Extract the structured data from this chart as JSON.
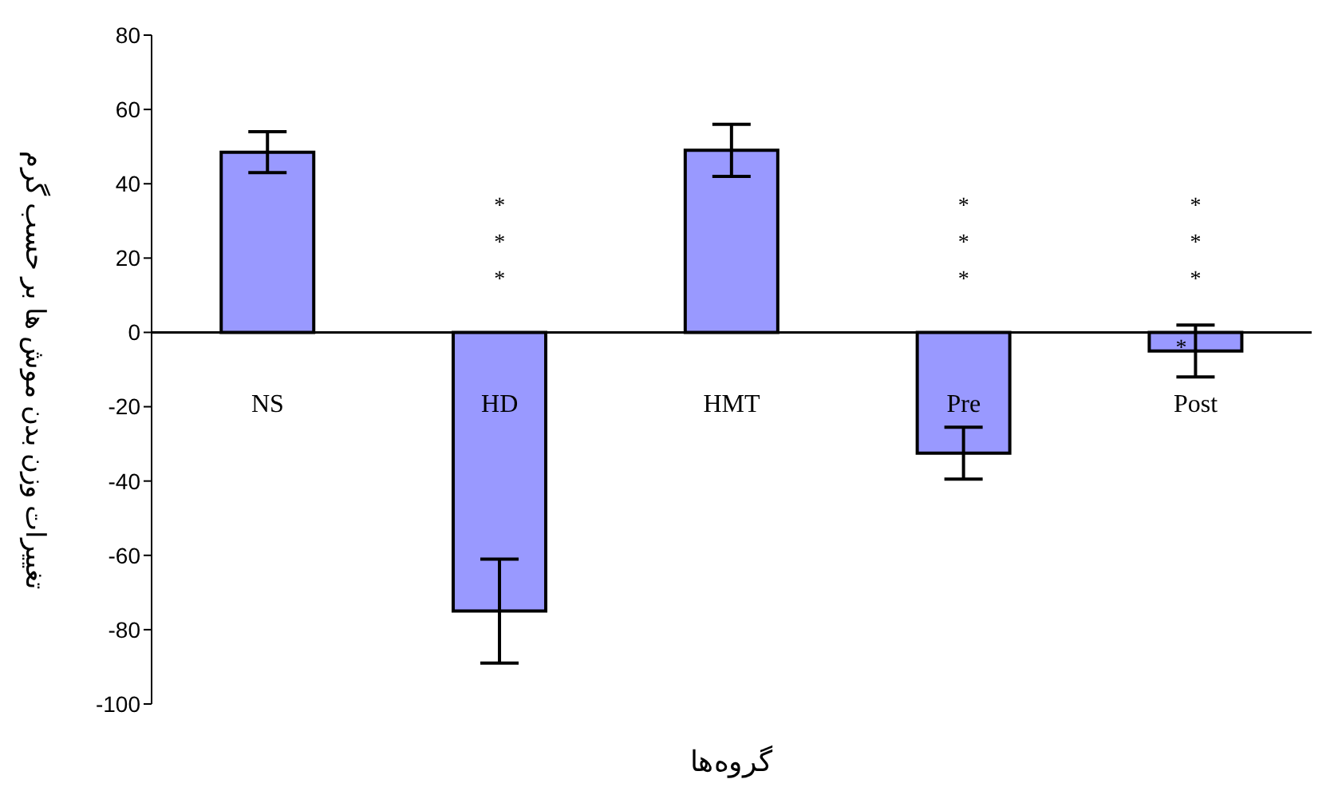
{
  "chart_data": {
    "type": "bar",
    "xlabel": "گروه‌ها",
    "ylabel": "تغییرات وزن بدن موش ها بر حسب گرم",
    "categories": [
      "NS",
      "HD",
      "HMT",
      "Pre",
      "Post"
    ],
    "values": [
      48.5,
      -75,
      49,
      -32.5,
      -5
    ],
    "errors": [
      5.5,
      14,
      7,
      7,
      7
    ],
    "color": "#9999ff",
    "ylim": [
      -100,
      80
    ],
    "yticks": [
      -100,
      -80,
      -60,
      -40,
      -20,
      0,
      20,
      40,
      60,
      80
    ],
    "grid": false,
    "legend": false,
    "annotations": [
      "***",
      "***",
      "***",
      "*"
    ]
  }
}
